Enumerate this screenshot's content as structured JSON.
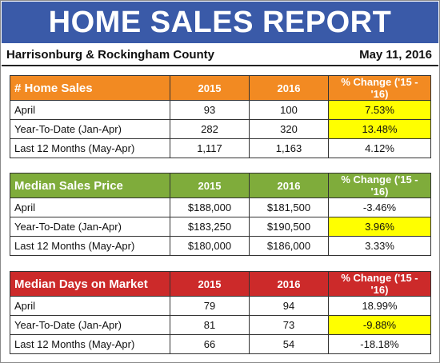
{
  "header": {
    "title": "HOME SALES REPORT",
    "location": "Harrisonburg & Rockingham County",
    "date": "May 11, 2016"
  },
  "colors": {
    "banner": "#3a5aa8",
    "home_sales_header": "#f28a22",
    "sales_price_header": "#7fac3b",
    "days_on_market_header": "#cc2a2a",
    "highlight": "#ffff00"
  },
  "tables": [
    {
      "title": "# Home Sales",
      "col_2015": "2015",
      "col_2016": "2016",
      "col_change": "% Change ('15 - '16)",
      "rows": [
        {
          "label": "April",
          "v2015": "93",
          "v2016": "100",
          "change": "7.53%",
          "highlight": true
        },
        {
          "label": "Year-To-Date (Jan-Apr)",
          "v2015": "282",
          "v2016": "320",
          "change": "13.48%",
          "highlight": true
        },
        {
          "label": "Last 12 Months (May-Apr)",
          "v2015": "1,117",
          "v2016": "1,163",
          "change": "4.12%",
          "highlight": false
        }
      ]
    },
    {
      "title": "Median Sales Price",
      "col_2015": "2015",
      "col_2016": "2016",
      "col_change": "% Change ('15 - '16)",
      "rows": [
        {
          "label": "April",
          "v2015": "$188,000",
          "v2016": "$181,500",
          "change": "-3.46%",
          "highlight": false
        },
        {
          "label": "Year-To-Date (Jan-Apr)",
          "v2015": "$183,250",
          "v2016": "$190,500",
          "change": "3.96%",
          "highlight": true
        },
        {
          "label": "Last 12 Months (May-Apr)",
          "v2015": "$180,000",
          "v2016": "$186,000",
          "change": "3.33%",
          "highlight": false
        }
      ]
    },
    {
      "title": "Median Days on Market",
      "col_2015": "2015",
      "col_2016": "2016",
      "col_change": "% Change ('15 - '16)",
      "rows": [
        {
          "label": "April",
          "v2015": "79",
          "v2016": "94",
          "change": "18.99%",
          "highlight": false
        },
        {
          "label": "Year-To-Date (Jan-Apr)",
          "v2015": "81",
          "v2016": "73",
          "change": "-9.88%",
          "highlight": true
        },
        {
          "label": "Last 12 Months (May-Apr)",
          "v2015": "66",
          "v2016": "54",
          "change": "-18.18%",
          "highlight": false
        }
      ]
    }
  ]
}
